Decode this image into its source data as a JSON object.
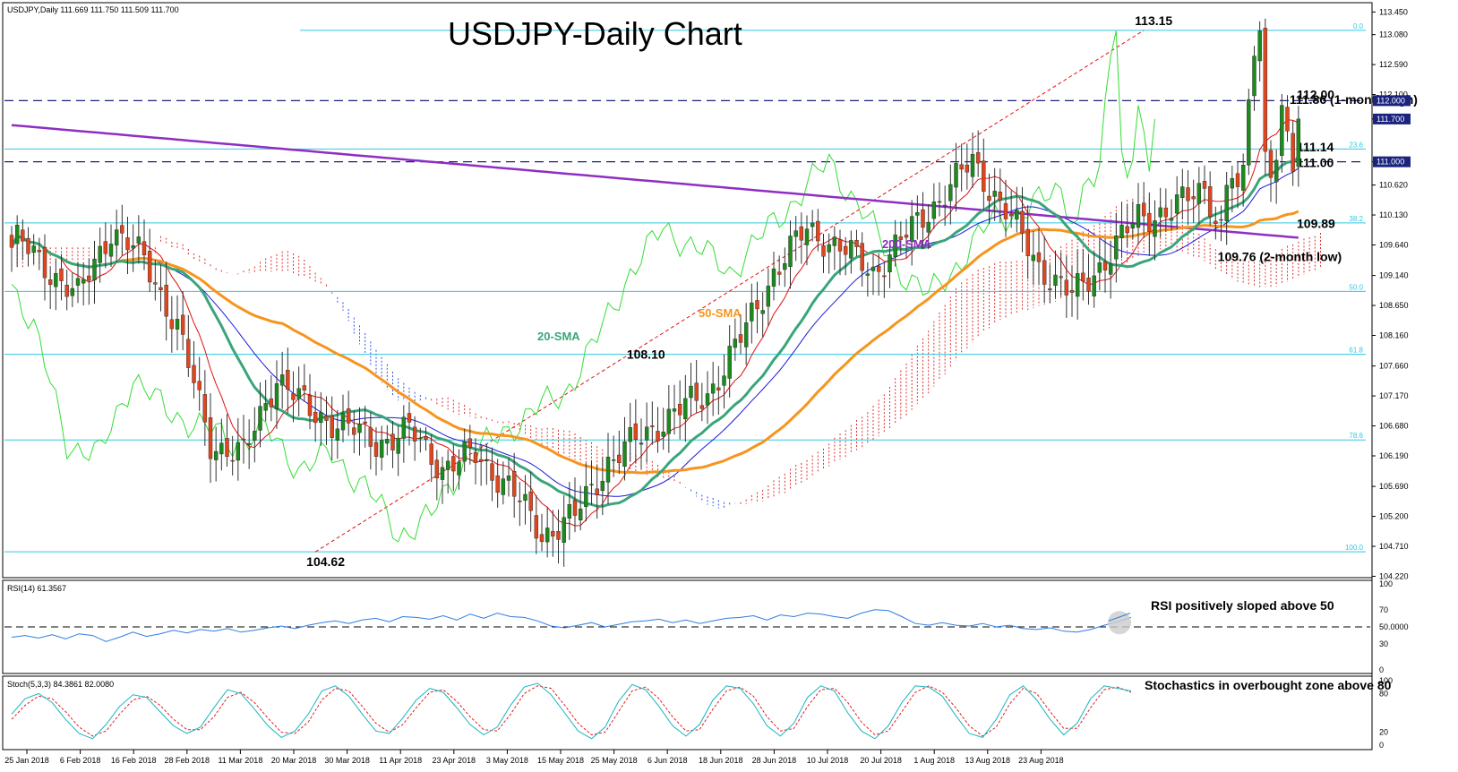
{
  "header": {
    "symbol_info": "USDJPY,Daily  111.669 111.750 111.509 111.700",
    "title": "USDJPY-Daily Chart"
  },
  "colors": {
    "bull": "#1c8a1c",
    "bear": "#e0461e",
    "sma20": "#3aa57a",
    "sma50": "#f7941d",
    "sma200": "#8e2ec4",
    "kijun": "#1a1adb",
    "tenkan": "#e01010",
    "chikou": "#33dd33",
    "cloud_bull": "#e03030",
    "cloud_bear": "#2b52e0",
    "fib": "#30c8e0",
    "level_line": "#1a237e",
    "rsi": "#2e7de0",
    "stoch_main": "#17b5c0",
    "stoch_signal": "#e02020"
  },
  "chart_data": [
    {
      "type": "candlestick",
      "panel": "price",
      "title": "USDJPY-Daily Chart",
      "ylim": [
        104.3,
        113.5
      ],
      "y_ticks": [
        "113.450",
        "113.080",
        "112.590",
        "112.100",
        "111.700",
        "111.000",
        "110.620",
        "110.130",
        "109.640",
        "109.140",
        "108.650",
        "108.160",
        "107.660",
        "107.170",
        "106.680",
        "106.190",
        "105.690",
        "105.200",
        "104.710",
        "104.220"
      ],
      "x_tick_labels": [
        "25 Jan 2018",
        "6 Feb 2018",
        "16 Feb 2018",
        "28 Feb 2018",
        "11 Mar 2018",
        "20 Mar 2018",
        "30 Mar 2018",
        "11 Apr 2018",
        "23 Apr 2018",
        "3 May 2018",
        "15 May 2018",
        "25 May 2018",
        "6 Jun 2018",
        "18 Jun 2018",
        "28 Jun 2018",
        "10 Jul 2018",
        "20 Jul 2018",
        "1 Aug 2018",
        "13 Aug 2018",
        "23 Aug 2018"
      ],
      "price_boxes": [
        {
          "value": 112.0,
          "label": "112.000"
        },
        {
          "value": 111.7,
          "label": "111.700"
        },
        {
          "value": 111.0,
          "label": "111.000"
        }
      ],
      "close_path_x": [
        0,
        6,
        12,
        18,
        24,
        30,
        36,
        42,
        48,
        54,
        60,
        66,
        72,
        78,
        84,
        90,
        96,
        102,
        108,
        114,
        120,
        126,
        132,
        138,
        144,
        150,
        156,
        162,
        168,
        174,
        180,
        186,
        192,
        198,
        204,
        210
      ],
      "close_path_y": [
        109.8,
        109.3,
        108.8,
        109.9,
        109.4,
        108.3,
        106.4,
        106.2,
        107.5,
        106.9,
        106.7,
        106.4,
        106.6,
        106.0,
        106.2,
        105.7,
        104.9,
        105.2,
        106.1,
        106.5,
        106.9,
        107.2,
        108.1,
        109.2,
        109.9,
        109.6,
        109.2,
        109.8,
        110.4,
        111.0,
        110.2,
        109.3,
        108.8,
        109.4,
        110.1,
        110.2
      ],
      "close_path_tail": [
        110.6,
        110.4,
        110.1,
        109.9,
        110.6,
        110.8,
        110.4,
        110.7,
        112.1,
        112.9,
        113.1,
        111.2,
        111.0,
        111.1,
        111.7,
        111.4,
        110.9,
        110.8,
        110.5,
        110.3,
        109.9,
        110.5,
        111.2,
        111.7
      ],
      "fib_levels": [
        {
          "label": "0.0",
          "value": 113.15
        },
        {
          "label": "23.6",
          "value": 111.21
        },
        {
          "label": "38.2",
          "value": 110.0
        },
        {
          "label": "50.0",
          "value": 108.88
        },
        {
          "label": "61.8",
          "value": 107.85
        },
        {
          "label": "78.6",
          "value": 106.45
        },
        {
          "label": "100.0",
          "value": 104.62
        }
      ],
      "levels": [
        {
          "label": "112.00",
          "value": 112.0
        },
        {
          "label": "111.14",
          "value": 111.14
        },
        {
          "label": "111.00",
          "value": 111.0
        },
        {
          "label": "109.89",
          "value": 109.89
        }
      ],
      "annotations": [
        {
          "text": "113.15",
          "x": 205,
          "y": 113.15
        },
        {
          "text": "104.62",
          "x": 55,
          "y": 104.62
        },
        {
          "text": "108.10",
          "x": 113,
          "y": 108.1
        },
        {
          "text": "111.86 (1-month high)",
          "x": 233,
          "y": 111.86
        },
        {
          "text": "109.76 (2-month low)",
          "x": 220,
          "y": 109.76
        }
      ],
      "series": [
        {
          "name": "20-SMA"
        },
        {
          "name": "50-SMA"
        },
        {
          "name": "200-SMA"
        }
      ]
    },
    {
      "type": "line",
      "panel": "rsi",
      "title": "RSI(14) 61.3567",
      "ylim": [
        0,
        100
      ],
      "y_ticks": [
        "100",
        "70",
        "50.0000",
        "30",
        "0"
      ],
      "reference": 50,
      "annotation": "RSI positively sloped above 50",
      "values": [
        38,
        40,
        37,
        41,
        36,
        42,
        40,
        33,
        38,
        44,
        39,
        42,
        46,
        43,
        47,
        45,
        48,
        44,
        46,
        49,
        51,
        48,
        52,
        55,
        57,
        54,
        58,
        60,
        56,
        62,
        61,
        59,
        63,
        58,
        65,
        60,
        66,
        62,
        61,
        57,
        51,
        49,
        52,
        55,
        50,
        53,
        56,
        57,
        59,
        55,
        58,
        54,
        57,
        60,
        61,
        63,
        58,
        64,
        62,
        66,
        65,
        62,
        60,
        66,
        70,
        69,
        62,
        54,
        52,
        55,
        52,
        51,
        54,
        50,
        52,
        48,
        47,
        49,
        45,
        44,
        47,
        52,
        56,
        61
      ]
    },
    {
      "type": "line",
      "panel": "stochastic",
      "title": "Stoch(5,3,3) 84.3861 82.0080",
      "ylim": [
        0,
        100
      ],
      "y_ticks": [
        "100",
        "80",
        "20",
        "0"
      ],
      "annotation": "Stochastics in overbought zone above 80",
      "main_values": [
        48,
        72,
        80,
        66,
        40,
        18,
        10,
        32,
        60,
        78,
        74,
        52,
        30,
        18,
        28,
        58,
        86,
        80,
        56,
        30,
        12,
        22,
        48,
        84,
        92,
        76,
        48,
        22,
        18,
        42,
        70,
        88,
        82,
        58,
        32,
        16,
        28,
        62,
        90,
        96,
        78,
        50,
        22,
        10,
        28,
        68,
        94,
        86,
        60,
        30,
        14,
        32,
        70,
        92,
        88,
        64,
        30,
        14,
        34,
        74,
        92,
        84,
        50,
        22,
        10,
        30,
        66,
        92,
        90,
        76,
        46,
        18,
        12,
        40,
        78,
        92,
        70,
        40,
        16,
        34,
        72,
        92,
        88,
        84
      ],
      "signal_values": [
        40,
        62,
        76,
        72,
        52,
        28,
        14,
        22,
        48,
        70,
        76,
        62,
        40,
        24,
        24,
        44,
        74,
        82,
        66,
        42,
        20,
        18,
        36,
        70,
        88,
        84,
        60,
        34,
        20,
        32,
        58,
        82,
        86,
        68,
        44,
        24,
        22,
        48,
        80,
        92,
        88,
        62,
        34,
        16,
        20,
        52,
        84,
        90,
        72,
        44,
        22,
        24,
        56,
        84,
        90,
        76,
        44,
        22,
        26,
        60,
        86,
        88,
        66,
        36,
        16,
        22,
        52,
        82,
        92,
        82,
        58,
        30,
        14,
        28,
        64,
        88,
        80,
        52,
        26,
        26,
        58,
        86,
        90,
        82
      ]
    }
  ],
  "ma_labels": {
    "sma20": "20-SMA",
    "sma50": "50-SMA",
    "sma200": "200-SMA"
  }
}
